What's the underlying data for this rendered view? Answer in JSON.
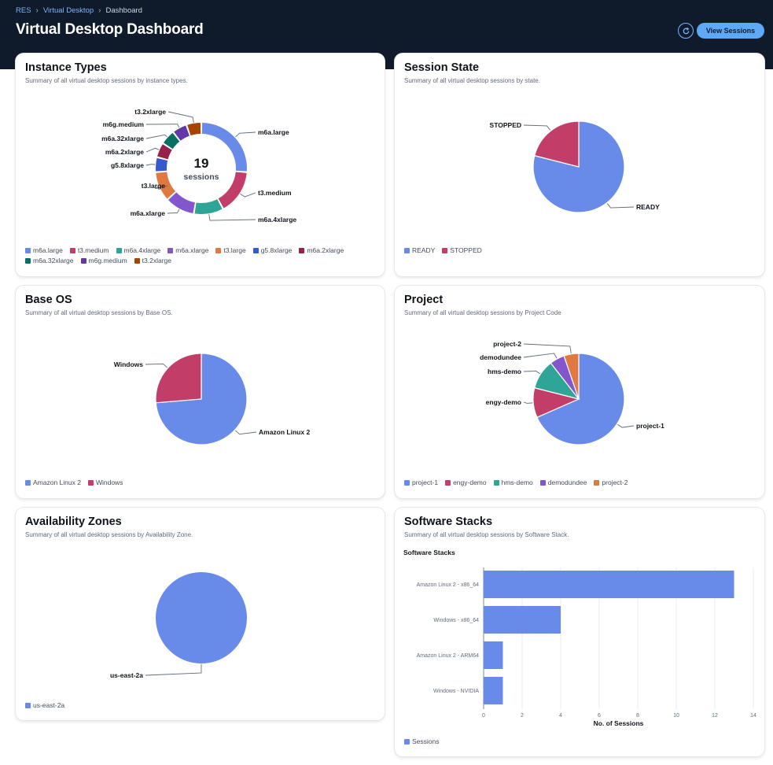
{
  "breadcrumb": {
    "items": [
      "RES",
      "Virtual Desktop",
      "Dashboard"
    ]
  },
  "page": {
    "title": "Virtual Desktop Dashboard"
  },
  "actions": {
    "view_sessions": "View Sessions",
    "refresh_icon": "refresh-icon"
  },
  "colors": {
    "header_bg": "#0f1b2a",
    "accent": "#5ea9f5",
    "palette": [
      "#688ae8",
      "#c33d69",
      "#2ea597",
      "#8456ce",
      "#e07941",
      "#3759ce",
      "#962249",
      "#096f64",
      "#6237a7",
      "#a84401"
    ]
  },
  "cards": {
    "instance_types": {
      "title": "Instance Types",
      "description": "Summary of all virtual desktop sessions by instance types.",
      "center_value": "19",
      "center_label": "sessions"
    },
    "session_state": {
      "title": "Session State",
      "description": "Summary of all virtual desktop sessions by state."
    },
    "base_os": {
      "title": "Base OS",
      "description": "Summary of all virtual desktop sessions by Base OS."
    },
    "project": {
      "title": "Project",
      "description": "Summary of all virtual desktop sessions by Project Code"
    },
    "availability_zones": {
      "title": "Availability Zones",
      "description": "Summary of all virtual desktop sessions by Availability Zone."
    },
    "software_stacks": {
      "title": "Software Stacks",
      "description": "Summary of all virtual desktop sessions by Software Stack."
    }
  },
  "chart_data": [
    {
      "id": "instance_types",
      "type": "pie",
      "donut": true,
      "categories": [
        "m6a.large",
        "t3.medium",
        "m6a.4xlarge",
        "m6a.xlarge",
        "t3.large",
        "g5.8xlarge",
        "m6a.2xlarge",
        "m6a.32xlarge",
        "m6g.medium",
        "t3.2xlarge"
      ],
      "values": [
        5,
        3,
        2,
        2,
        2,
        1,
        1,
        1,
        1,
        1
      ],
      "legend": "bottom"
    },
    {
      "id": "session_state",
      "type": "pie",
      "categories": [
        "READY",
        "STOPPED"
      ],
      "values": [
        15,
        4
      ],
      "legend": "bottom"
    },
    {
      "id": "base_os",
      "type": "pie",
      "categories": [
        "Amazon Linux 2",
        "Windows"
      ],
      "values": [
        14,
        5
      ],
      "legend": "bottom"
    },
    {
      "id": "project",
      "type": "pie",
      "categories": [
        "project-1",
        "engy-demo",
        "hms-demo",
        "demodundee",
        "project-2"
      ],
      "values": [
        13,
        2,
        2,
        1,
        1
      ],
      "legend": "bottom"
    },
    {
      "id": "availability_zones",
      "type": "pie",
      "categories": [
        "us-east-2a"
      ],
      "values": [
        19
      ],
      "legend": "bottom"
    },
    {
      "id": "software_stacks",
      "type": "bar",
      "orientation": "horizontal",
      "title": "Software Stacks",
      "categories": [
        "Amazon Linux 2 - x86_64",
        "Windows - x86_64",
        "Amazon Linux 2 - ARM64",
        "Windows - NVIDIA"
      ],
      "series": [
        {
          "name": "Sessions",
          "values": [
            13,
            4,
            1,
            1
          ]
        }
      ],
      "xlabel": "No. of Sessions",
      "xlim": [
        0,
        14
      ],
      "xticks": [
        0,
        2,
        4,
        6,
        8,
        10,
        12,
        14
      ],
      "grid": true,
      "legend": "bottom"
    }
  ]
}
